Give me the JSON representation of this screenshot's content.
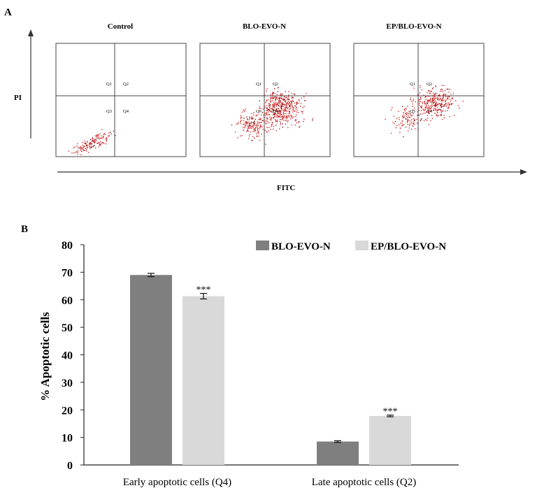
{
  "panel_a": {
    "label": "A",
    "y_axis_label": "PI",
    "x_axis_label": "FITC",
    "plots": [
      {
        "title": "Control",
        "quadrants": [
          "Q1",
          "Q2",
          "Q3",
          "Q4"
        ]
      },
      {
        "title": "BLO-EVO-N",
        "quadrants": [
          "Q1",
          "Q2",
          "Q3",
          "Q4"
        ]
      },
      {
        "title": "EP/BLO-EVO-N",
        "quadrants": [
          "Q1",
          "Q2",
          "Q3",
          "Q4"
        ]
      }
    ],
    "dot_color": "#d42a2a"
  },
  "panel_b": {
    "label": "B",
    "chart_data": {
      "type": "bar",
      "categories": [
        "Early apoptotic cells (Q4)",
        "Late apoptotic cells (Q2)"
      ],
      "series": [
        {
          "name": "BLO-EVO-N",
          "values": [
            69,
            8.5
          ],
          "errors": [
            0.6,
            0.3
          ],
          "color": "#7f7f7f"
        },
        {
          "name": "EP/BLO-EVO-N",
          "values": [
            61.3,
            17.8
          ],
          "errors": [
            1.0,
            0.3
          ],
          "color": "#d9d9d9"
        }
      ],
      "significance": [
        [
          "",
          ""
        ],
        [
          "***",
          "***"
        ]
      ],
      "ylabel": "% Apoptotic cells",
      "xlabel": "",
      "yticks": [
        "0",
        "10",
        "20",
        "30",
        "40",
        "50",
        "60",
        "70",
        "80"
      ],
      "ylim": [
        0,
        80
      ],
      "legend_position": "top-right",
      "grid": false
    }
  }
}
